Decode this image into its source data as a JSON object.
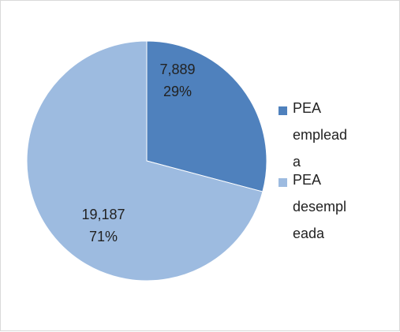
{
  "chart_data": {
    "type": "pie",
    "categories": [
      "PEA empleada",
      "PEA desempleada"
    ],
    "values": [
      7889,
      19187
    ],
    "value_labels": [
      "7,889",
      "19,187"
    ],
    "percents": [
      29,
      71
    ],
    "percent_labels": [
      "29%",
      "71%"
    ],
    "colors": [
      "#4f81bd",
      "#9dbbe0"
    ],
    "legend": "right"
  }
}
